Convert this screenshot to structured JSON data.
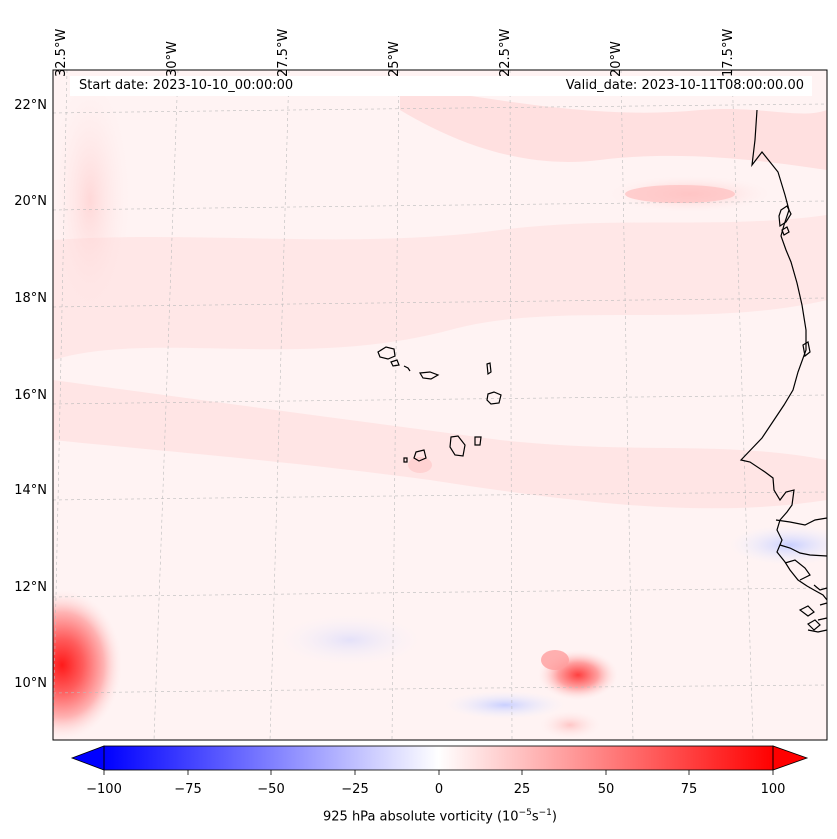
{
  "map": {
    "start_date_label": "Start date: 2023-10-10_00:00:00",
    "valid_date_label": "Valid_date: 2023-10-11T08:00:00.00",
    "longitude_labels": [
      "32.5°W",
      "30°W",
      "27.5°W",
      "25°W",
      "22.5°W",
      "20°W",
      "17.5°W"
    ],
    "latitude_labels": [
      "22°N",
      "20°N",
      "18°N",
      "16°N",
      "14°N",
      "12°N",
      "10°N"
    ],
    "colorbar": {
      "ticks": [
        "−100",
        "−75",
        "−50",
        "−25",
        "0",
        "25",
        "50",
        "75",
        "100"
      ],
      "label_prefix": "925 hPa absolute vorticity (10",
      "label_exp1": "−5",
      "label_mid": "s",
      "label_exp2": "−1",
      "label_suffix": ")",
      "min_color": "#0000ff",
      "mid_color": "#ffffff",
      "max_color": "#ff0000"
    }
  }
}
